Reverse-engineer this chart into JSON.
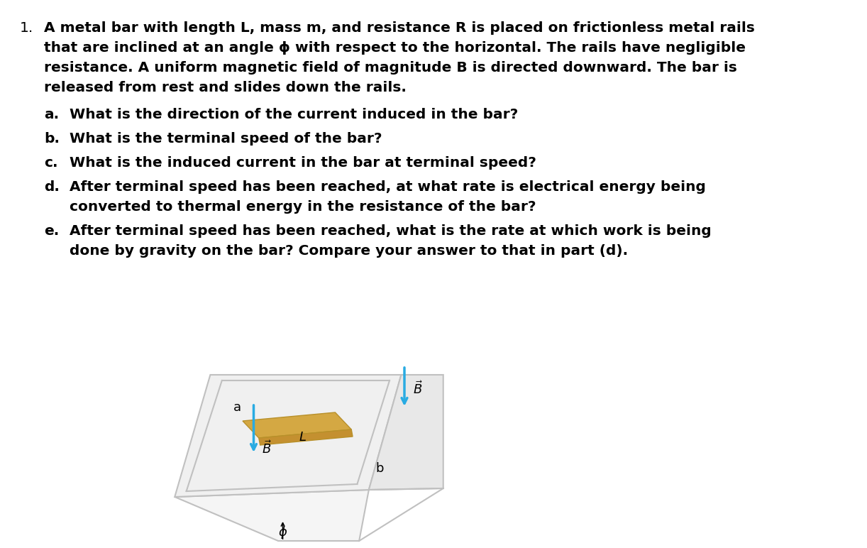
{
  "background_color": "#ffffff",
  "text_color": "#000000",
  "figsize": [
    12.22,
    7.72
  ],
  "dpi": 100,
  "main_text": {
    "number": "1.",
    "paragraph": "A metal bar with length L, mass m, and resistance R is placed on frictionless metal rails\nthat are inclined at an angle ϕ with respect to the horizontal. The rails have negligible\nresistance. A uniform magnetic field of magnitude B is directed downward. The bar is\nreleased from rest and slides down the rails.",
    "sub_items": [
      {
        "label": "a.",
        "text": "What is the direction of the current induced in the bar?"
      },
      {
        "label": "b.",
        "text": "What is the terminal speed of the bar?"
      },
      {
        "label": "c.",
        "text": "What is the induced current in the bar at terminal speed?"
      },
      {
        "label": "d.",
        "text": "After terminal speed has been reached, at what rate is electrical energy being\nconverted to thermal energy in the resistance of the bar?"
      },
      {
        "label": "e.",
        "text": "After terminal speed has been reached, what is the rate at which work is being\ndone by gravity on the bar? Compare your answer to that in part (d)."
      }
    ]
  },
  "diagram": {
    "rail_color": "#c0c0c0",
    "bar_color": "#d4a843",
    "bar_edge_color": "#b8902a",
    "arrow_color": "#29abe2",
    "text_color": "#000000",
    "rail_linewidth": 1.5,
    "bar_linewidth": 1.0
  }
}
